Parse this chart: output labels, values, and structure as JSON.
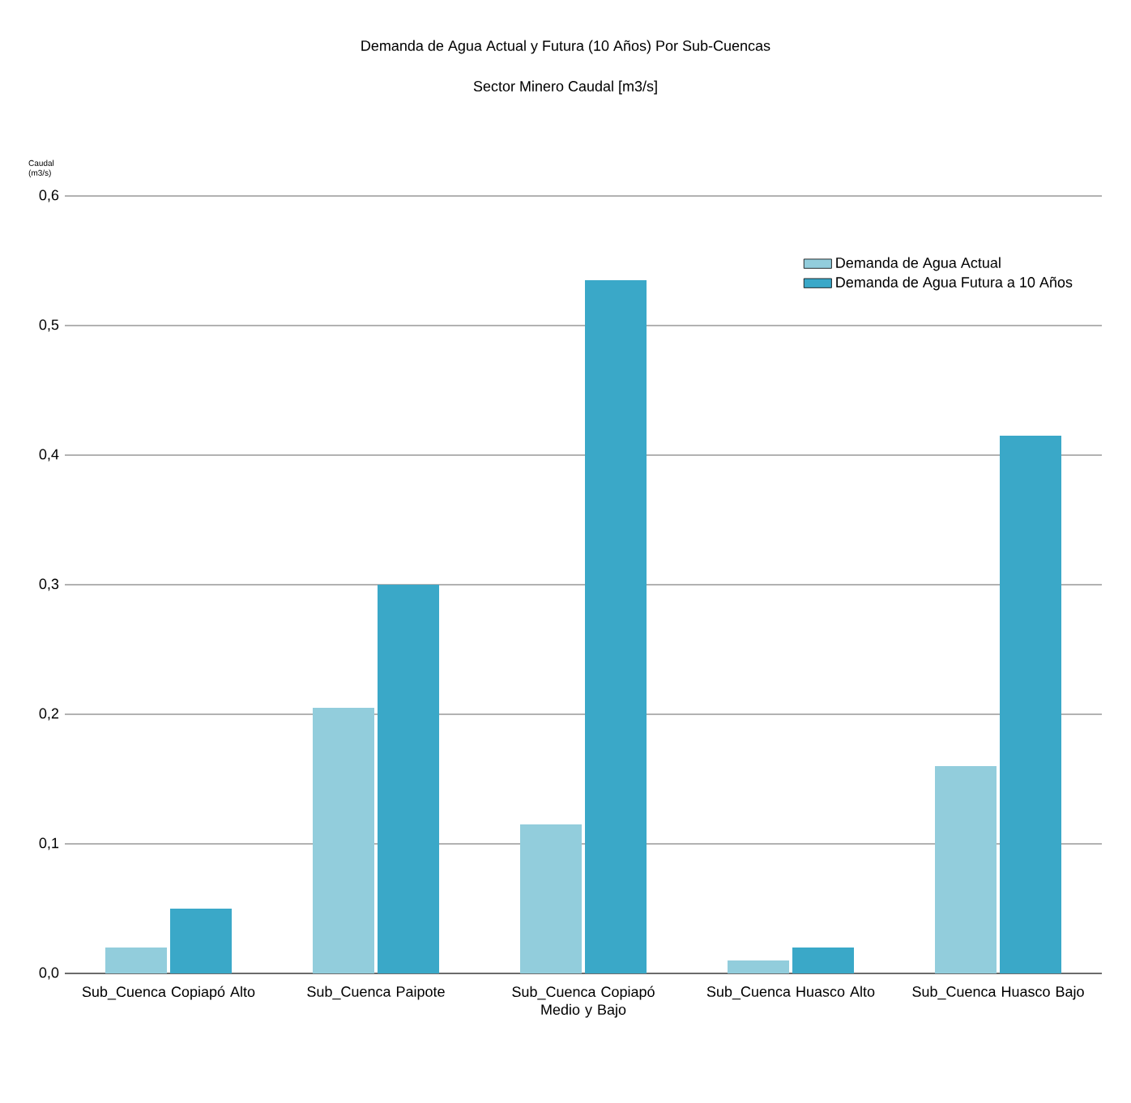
{
  "chart_data": {
    "type": "bar",
    "title": "Demanda de Agua Actual y Futura (10 Años) Por Sub-Cuencas",
    "subtitle": "Sector Minero  Caudal  [m3/s]",
    "ylabel": "Caudal (m3/s)",
    "categories": [
      "Sub_Cuenca Copiapó Alto",
      "Sub_Cuenca Paipote",
      "Sub_Cuenca Copiapó Medio y Bajo",
      "Sub_Cuenca Huasco Alto",
      "Sub_Cuenca Huasco Bajo"
    ],
    "series": [
      {
        "name": "Demanda de Agua Actual",
        "color": "#92cddc",
        "values": [
          0.02,
          0.205,
          0.115,
          0.01,
          0.16
        ]
      },
      {
        "name": "Demanda de Agua Futura a 10 Años",
        "color": "#3aa8c8",
        "values": [
          0.05,
          0.3,
          0.535,
          0.02,
          0.415
        ]
      }
    ],
    "ylim": [
      0,
      0.6
    ],
    "yticks": [
      {
        "value": 0,
        "label": "0,0"
      },
      {
        "value": 0.1,
        "label": "0,1"
      },
      {
        "value": 0.2,
        "label": "0,2"
      },
      {
        "value": 0.3,
        "label": "0,3"
      },
      {
        "value": 0.4,
        "label": "0,4"
      },
      {
        "value": 0.5,
        "label": "0,5"
      },
      {
        "value": 0.6,
        "label": "0,6"
      }
    ],
    "grid": "y",
    "legend": "top right"
  }
}
